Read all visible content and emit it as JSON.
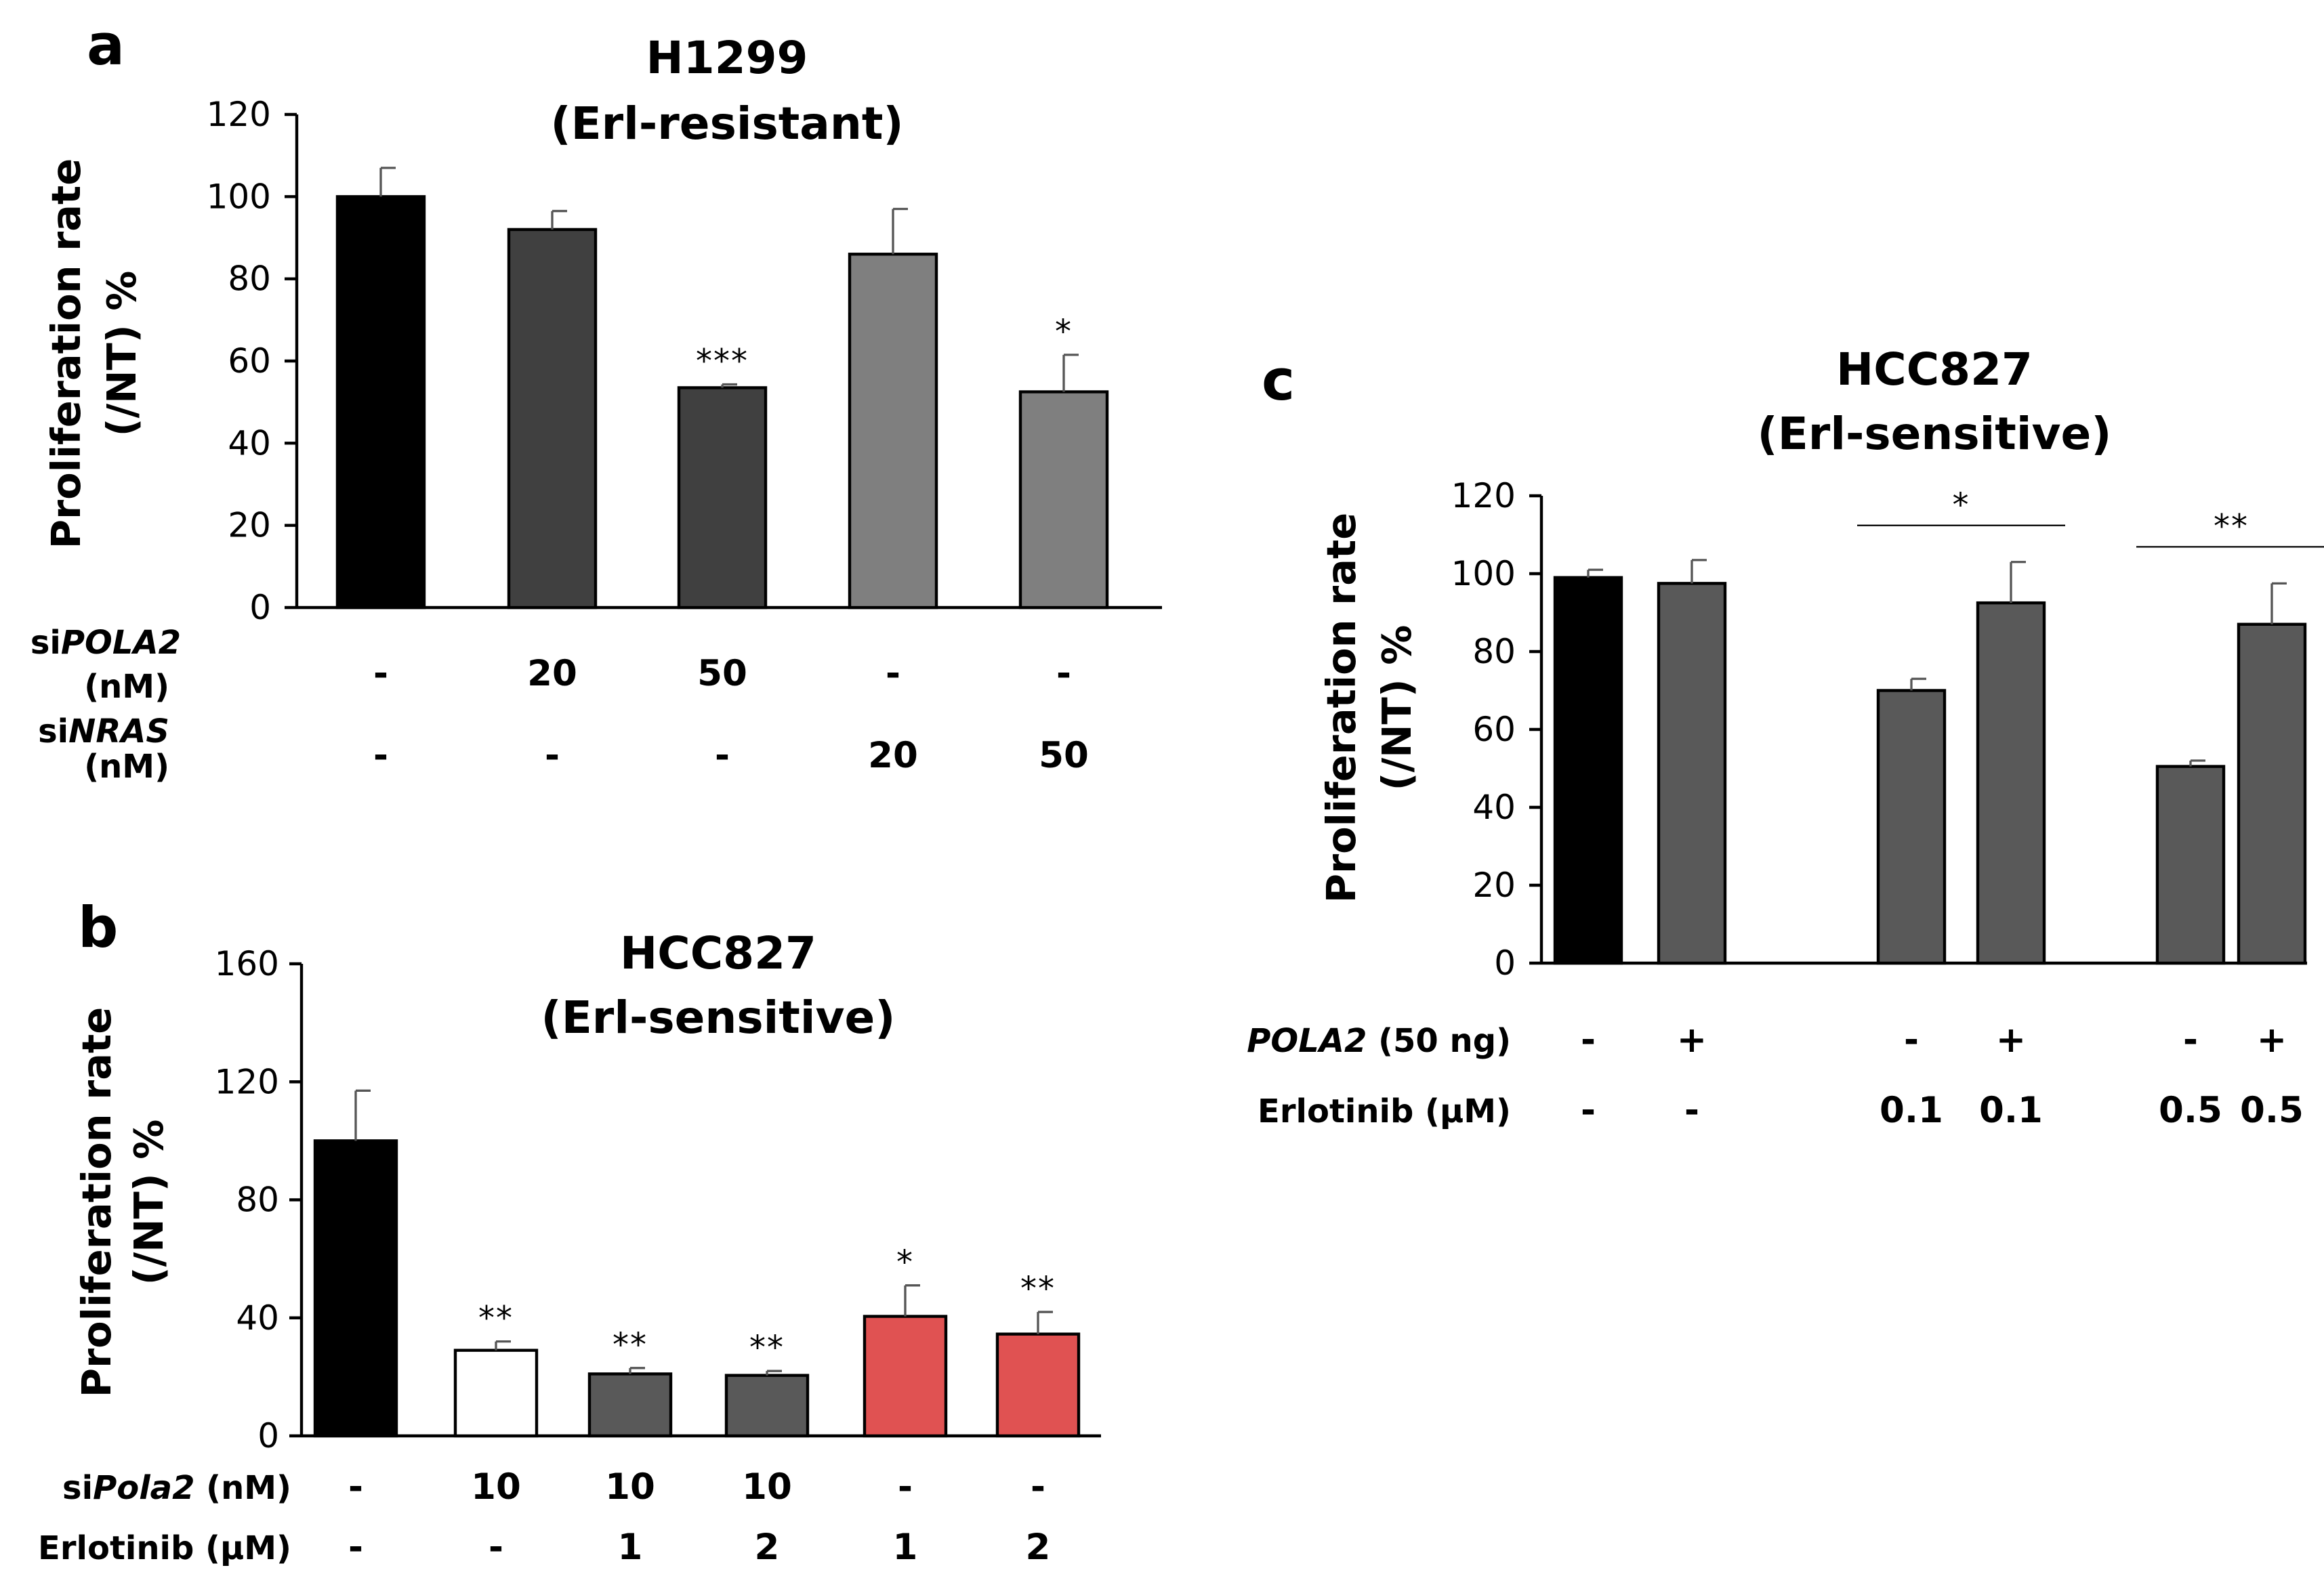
{
  "colors": {
    "black": "#000000",
    "darkgray": "#404040",
    "gray": "#7f7f7f",
    "midgray": "#595959",
    "white": "#ffffff",
    "red": "#e05252"
  },
  "chart_data": [
    {
      "type": "bar",
      "panel": "a",
      "title_line1": "H1299",
      "title_line2": "(Erl-resistant)",
      "ylabel_line1": "Proliferation rate",
      "ylabel_line2": "(/NT) %",
      "ylim": [
        0,
        120
      ],
      "yticks": [
        0,
        20,
        40,
        60,
        80,
        100,
        120
      ],
      "values": [
        100,
        92,
        53.5,
        86,
        52.5
      ],
      "errors": [
        7,
        4.5,
        0.8,
        11,
        9
      ],
      "significance": [
        "",
        "",
        "***",
        "",
        "*"
      ],
      "bar_colors": [
        "black",
        "darkgray",
        "darkgray",
        "gray",
        "gray"
      ],
      "rows": [
        {
          "label_prefix": "si",
          "label_gene": "POLA2",
          "label_unit": "(nM)",
          "values": [
            "-",
            "20",
            "50",
            "-",
            "-"
          ]
        },
        {
          "label_prefix": "si",
          "label_gene": "NRAS",
          "label_unit": "(nM)",
          "values": [
            "-",
            "-",
            "-",
            "20",
            "50"
          ]
        }
      ]
    },
    {
      "type": "bar",
      "panel": "b",
      "title_line1": "HCC827",
      "title_line2": "(Erl-sensitive)",
      "ylabel_line1": "Proliferation rate",
      "ylabel_line2": "(/NT) %",
      "ylim": [
        0,
        160
      ],
      "yticks": [
        0,
        40,
        80,
        120,
        160
      ],
      "values": [
        100,
        29,
        21,
        20.5,
        40.5,
        34.5
      ],
      "errors": [
        17,
        3,
        2,
        1.5,
        10.5,
        7.5
      ],
      "significance": [
        "",
        "**",
        "**",
        "**",
        "*",
        "**"
      ],
      "bar_colors": [
        "black",
        "white",
        "midgray",
        "midgray",
        "red",
        "red"
      ],
      "rows": [
        {
          "label_prefix": "si",
          "label_gene": "Pola2",
          "label_unit": " (nM)",
          "values": [
            "-",
            "10",
            "10",
            "10",
            "-",
            "-"
          ]
        },
        {
          "label_prefix": "",
          "label_gene": "",
          "label_unit": "Erlotinib (μM)",
          "values": [
            "-",
            "-",
            "1",
            "2",
            "1",
            "2"
          ]
        }
      ]
    },
    {
      "type": "bar",
      "panel": "c",
      "title_line1": "HCC827",
      "title_line2": "(Erl-sensitive)",
      "ylabel_line1": "Proliferation rate",
      "ylabel_line2": "(/NT) %",
      "ylim": [
        0,
        120
      ],
      "yticks": [
        0,
        20,
        40,
        60,
        80,
        100,
        120
      ],
      "values": [
        99,
        97.5,
        70,
        92.5,
        50.5,
        87
      ],
      "errors": [
        2,
        6,
        3,
        10.5,
        1.5,
        10.5
      ],
      "bar_colors": [
        "black",
        "midgray",
        "midgray",
        "midgray",
        "midgray",
        "midgray"
      ],
      "brackets": [
        {
          "from": 2,
          "to": 3,
          "label": "*"
        },
        {
          "from": 4,
          "to": 5,
          "label": "**"
        }
      ],
      "rows": [
        {
          "label_prefix": "",
          "label_gene": "POLA2",
          "label_unit": " (50 ng)",
          "values": [
            "-",
            "+",
            "-",
            "+",
            "-",
            "+"
          ]
        },
        {
          "label_prefix": "",
          "label_gene": "",
          "label_unit": "Erlotinib (μM)",
          "values": [
            "-",
            "-",
            "0.1",
            "0.1",
            "0.5",
            "0.5"
          ]
        }
      ]
    }
  ]
}
